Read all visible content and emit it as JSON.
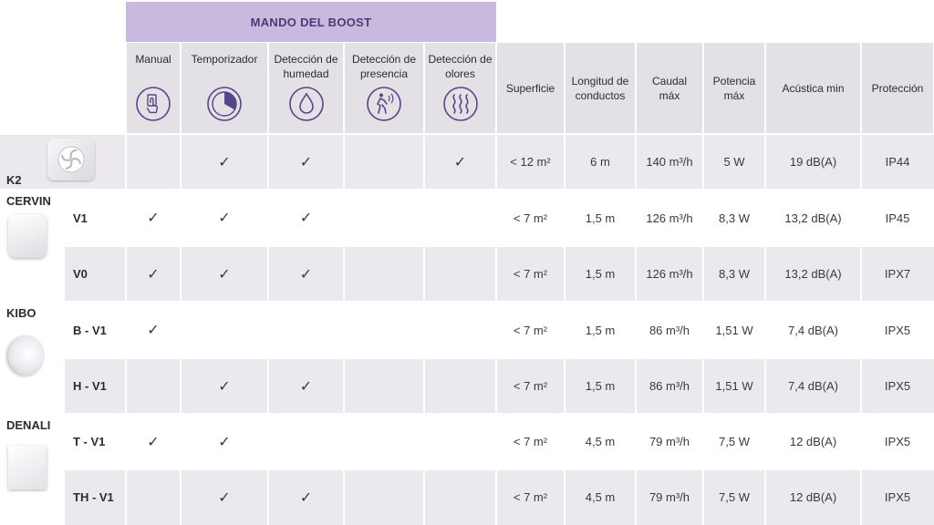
{
  "boost_header": "MANDO DEL BOOST",
  "boost_columns": [
    {
      "label": "Manual",
      "icon": "hand-touch-icon"
    },
    {
      "label": "Temporizador",
      "icon": "timer-icon"
    },
    {
      "label": "Detección de humedad",
      "icon": "droplet-icon"
    },
    {
      "label": "Detección de presencia",
      "icon": "presence-icon"
    },
    {
      "label": "Detección de olores",
      "icon": "odor-icon"
    }
  ],
  "spec_columns": [
    "Superficie",
    "Longitud de conductos",
    "Caudal máx",
    "Potencia máx",
    "Acústica min",
    "Protección"
  ],
  "brands": [
    {
      "name": "K2",
      "image": "k2-fan-image"
    },
    {
      "name": "CERVIN",
      "image": "cervin-fan-image"
    },
    {
      "name": "KIBO",
      "image": "kibo-fan-image"
    },
    {
      "name": "DENALI",
      "image": "denali-fan-image"
    }
  ],
  "rows": [
    {
      "variant": "",
      "checks": [
        "",
        "✓",
        "✓",
        "",
        "✓"
      ],
      "superficie": "< 12 m²",
      "longitud": "6 m",
      "caudal": "140 m³/h",
      "potencia": "5 W",
      "acustica": "19 dB(A)",
      "proteccion": "IP44"
    },
    {
      "variant": "V1",
      "checks": [
        "✓",
        "✓",
        "✓",
        "",
        ""
      ],
      "superficie": "< 7 m²",
      "longitud": "1,5 m",
      "caudal": "126 m³/h",
      "potencia": "8,3 W",
      "acustica": "13,2 dB(A)",
      "proteccion": "IP45"
    },
    {
      "variant": "V0",
      "checks": [
        "✓",
        "✓",
        "✓",
        "",
        ""
      ],
      "superficie": "< 7 m²",
      "longitud": "1,5 m",
      "caudal": "126 m³/h",
      "potencia": "8,3 W",
      "acustica": "13,2 dB(A)",
      "proteccion": "IPX7"
    },
    {
      "variant": "B - V1",
      "checks": [
        "✓",
        "",
        "",
        "",
        ""
      ],
      "superficie": "< 7 m²",
      "longitud": "1,5 m",
      "caudal": "86 m³/h",
      "potencia": "1,51 W",
      "acustica": "7,4 dB(A)",
      "proteccion": "IPX5"
    },
    {
      "variant": "H - V1",
      "checks": [
        "",
        "✓",
        "✓",
        "",
        ""
      ],
      "superficie": "< 7 m²",
      "longitud": "1,5 m",
      "caudal": "86 m³/h",
      "potencia": "1,51 W",
      "acustica": "7,4 dB(A)",
      "proteccion": "IPX5"
    },
    {
      "variant": "T - V1",
      "checks": [
        "✓",
        "✓",
        "",
        "",
        ""
      ],
      "superficie": "< 7 m²",
      "longitud": "4,5 m",
      "caudal": "79 m³/h",
      "potencia": "7,5 W",
      "acustica": "12 dB(A)",
      "proteccion": "IPX5"
    },
    {
      "variant": "TH - V1",
      "checks": [
        "",
        "✓",
        "✓",
        "",
        ""
      ],
      "superficie": "< 7 m²",
      "longitud": "4,5 m",
      "caudal": "79 m³/h",
      "potencia": "7,5 W",
      "acustica": "12 dB(A)",
      "proteccion": "IPX5"
    }
  ],
  "colors": {
    "header_purple": "#c8b9df",
    "header_text": "#4b3a78",
    "header_gray": "#e3e0e6",
    "row_shade": "#ece9ee",
    "icon_purple": "#5a4488"
  }
}
